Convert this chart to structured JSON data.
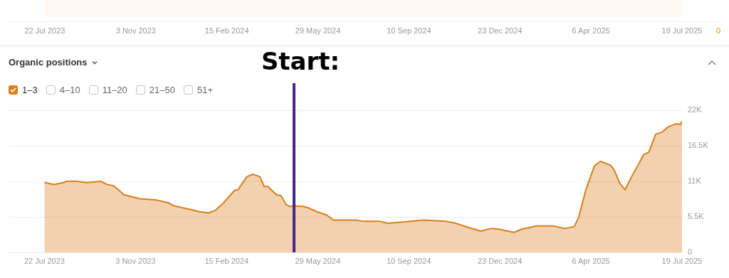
{
  "chart_data": [
    {
      "type": "other",
      "annotations": [
        "22 Jul 2023",
        "3 Nov 2023",
        "15 Feb 2024",
        "29 May 2024",
        "10 Sep 2024",
        "23 Dec 2024",
        "6 Apr 2025",
        "19 Jul 2025",
        "0"
      ]
    },
    {
      "type": "area",
      "title": "Organic positions",
      "xlim": [
        "2023-06-11",
        "2025-07-19"
      ],
      "xticks": [
        {
          "value": "2023-07-22",
          "label": "22 Jul 2023"
        },
        {
          "value": "2023-11-03",
          "label": "3 Nov 2023"
        },
        {
          "value": "2024-02-15",
          "label": "15 Feb 2024"
        },
        {
          "value": "2024-05-29",
          "label": "29 May 2024"
        },
        {
          "value": "2024-09-10",
          "label": "10 Sep 2024"
        },
        {
          "value": "2024-12-23",
          "label": "23 Dec 2024"
        },
        {
          "value": "2025-04-06",
          "label": "6 Apr 2025"
        },
        {
          "value": "2025-07-19",
          "label": "19 Jul 2025"
        }
      ],
      "ylim": [
        0,
        22000
      ],
      "yticks": [
        0,
        {
          "value": 5500,
          "label": "5.5K"
        },
        {
          "value": 11000,
          "label": "11K"
        },
        {
          "value": 16500,
          "label": "16.5K"
        },
        {
          "value": 22000,
          "label": "22K"
        }
      ],
      "grid": "y",
      "legend": "top left",
      "x": [
        "2023-07-22",
        "2023-08-02",
        "2023-08-13",
        "2023-08-16",
        "2023-08-27",
        "2023-09-09",
        "2023-09-24",
        "2023-10-02",
        "2023-10-09",
        "2023-10-21",
        "2023-11-08",
        "2023-11-27",
        "2023-12-10",
        "2023-12-17",
        "2023-12-27",
        "2024-01-06",
        "2024-01-15",
        "2024-01-25",
        "2024-02-02",
        "2024-02-11",
        "2024-02-24",
        "2024-02-28",
        "2024-03-09",
        "2024-03-16",
        "2024-03-24",
        "2024-03-29",
        "2024-04-02",
        "2024-04-12",
        "2024-04-17",
        "2024-04-23",
        "2024-04-27",
        "2024-05-02",
        "2024-05-13",
        "2024-05-18",
        "2024-05-28",
        "2024-06-08",
        "2024-06-16",
        "2024-06-25",
        "2024-07-01",
        "2024-07-11",
        "2024-07-20",
        "2024-08-08",
        "2024-08-17",
        "2024-09-04",
        "2024-09-27",
        "2024-10-23",
        "2024-11-03",
        "2024-11-16",
        "2024-12-01",
        "2024-12-13",
        "2024-12-21",
        "2025-01-08",
        "2025-01-17",
        "2025-02-03",
        "2025-02-22",
        "2025-03-07",
        "2025-03-18",
        "2025-03-23",
        "2025-03-31",
        "2025-04-10",
        "2025-04-17",
        "2025-04-28",
        "2025-05-02",
        "2025-05-09",
        "2025-05-15",
        "2025-05-22",
        "2025-05-29",
        "2025-06-05",
        "2025-06-11",
        "2025-06-19",
        "2025-06-26",
        "2025-07-03",
        "2025-07-12",
        "2025-07-17",
        "2025-07-19"
      ],
      "series": [
        {
          "name": "1–3",
          "color": "#d97f1e",
          "values": [
            10800,
            10500,
            10800,
            11000,
            11000,
            10800,
            11000,
            10500,
            10300,
            8900,
            8300,
            8100,
            7700,
            7200,
            6900,
            6600,
            6300,
            6100,
            6500,
            7600,
            9600,
            9700,
            11700,
            12100,
            11700,
            10200,
            10200,
            8900,
            8800,
            7400,
            7100,
            7200,
            7100,
            6900,
            6300,
            5800,
            5000,
            5000,
            5000,
            5000,
            4800,
            4800,
            4500,
            4700,
            5000,
            4800,
            4500,
            3900,
            3300,
            3700,
            3600,
            3100,
            3600,
            4100,
            4100,
            3700,
            4000,
            5400,
            9600,
            13400,
            14100,
            13500,
            12900,
            10700,
            9700,
            11600,
            13300,
            15100,
            15500,
            18300,
            18600,
            19400,
            19900,
            19800,
            20300
          ]
        }
      ],
      "annotations": [
        "4–10",
        "11–20",
        "21–50",
        "51+"
      ],
      "ref_lines": [
        {
          "axis": "x",
          "value": "2024-05-02",
          "label": "Start:",
          "color": "#4b2582"
        }
      ]
    }
  ]
}
